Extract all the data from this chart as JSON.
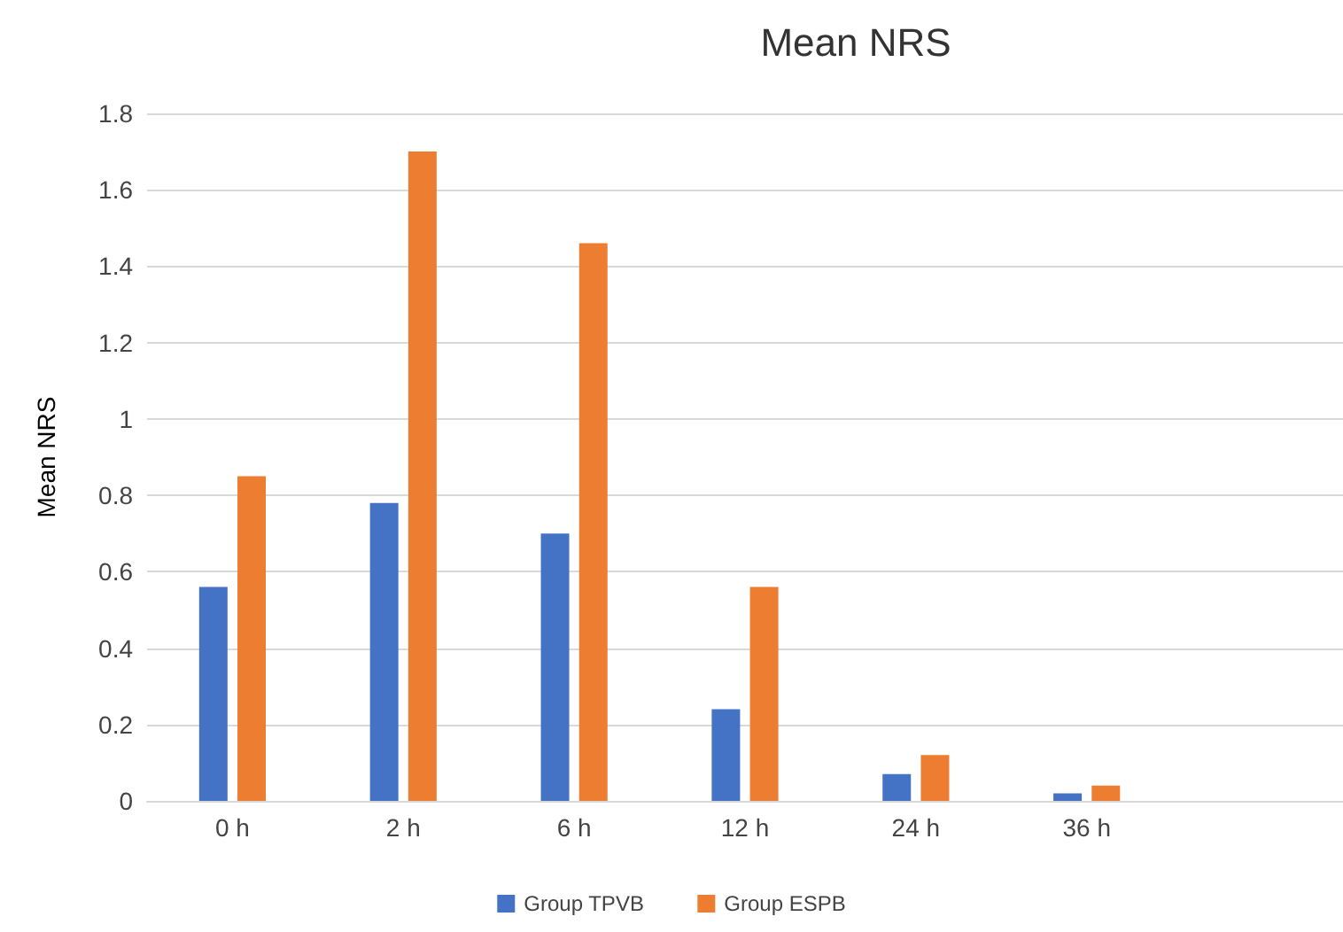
{
  "chart_data": {
    "type": "bar",
    "title": "Mean NRS",
    "ylabel": "Mean NRS",
    "categories": [
      "0 h",
      "2 h",
      "6 h",
      "12 h",
      "24 h",
      "36 h",
      null
    ],
    "series": [
      {
        "name": "Group TPVB",
        "color": "#4472c4",
        "values": [
          0.56,
          0.78,
          0.7,
          0.24,
          0.07,
          0.02,
          null
        ]
      },
      {
        "name": "Group ESPB",
        "color": "#ed7d31",
        "values": [
          0.85,
          1.7,
          1.46,
          0.56,
          0.12,
          0.04,
          null
        ]
      }
    ],
    "ylim": [
      0,
      1.8
    ],
    "yticks": [
      0,
      0.2,
      0.4,
      0.6,
      0.8,
      1,
      1.2,
      1.4,
      1.6,
      1.8
    ],
    "grid": "y",
    "legend": "bottom"
  }
}
